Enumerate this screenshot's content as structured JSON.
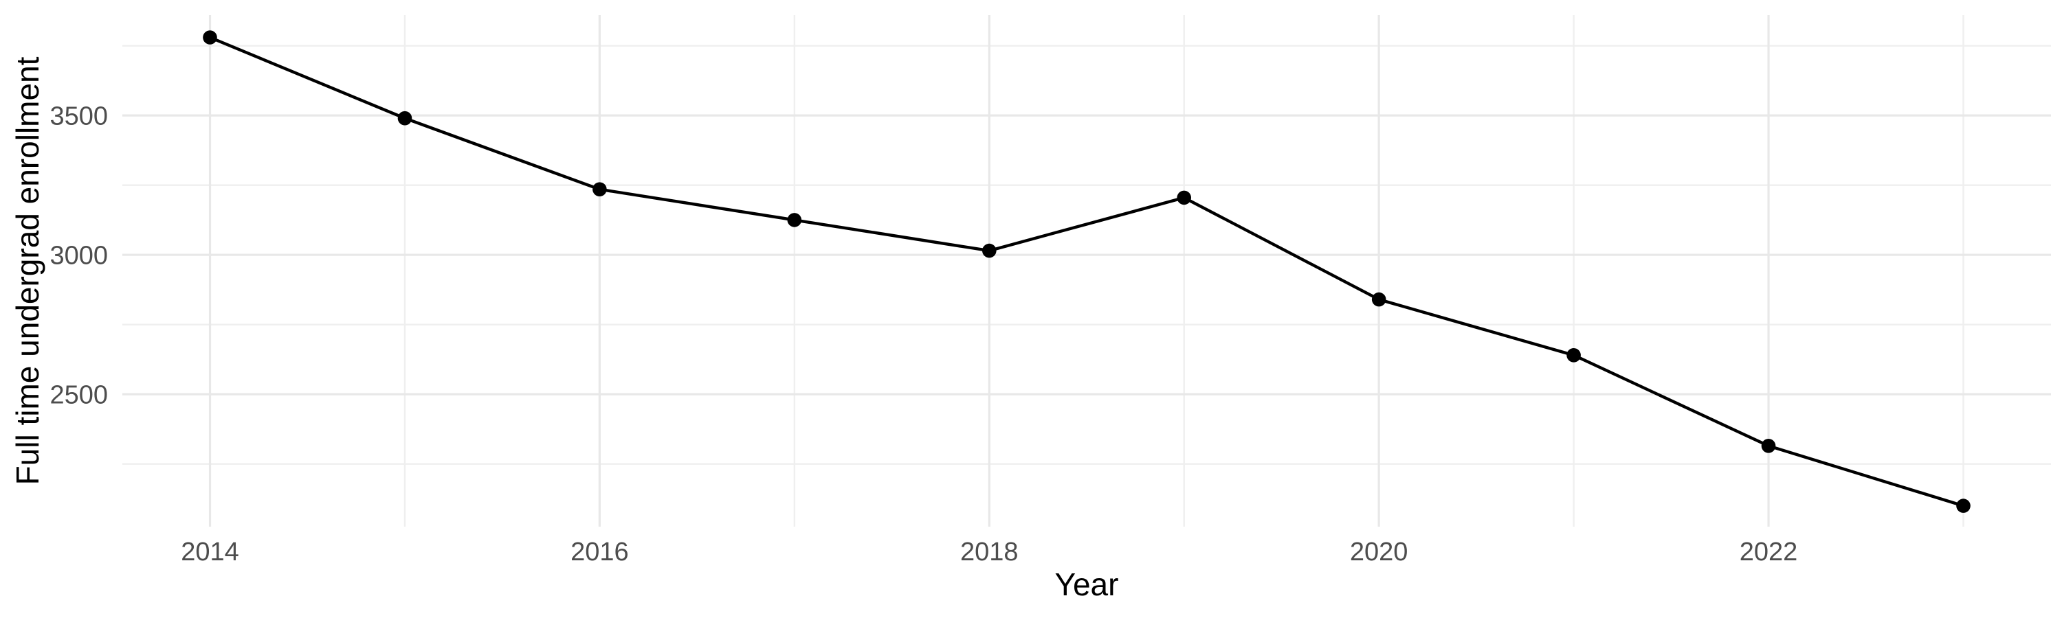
{
  "page": {
    "background": "#FFFFFF"
  },
  "chart_data": {
    "type": "line",
    "title": "",
    "xlabel": "Year",
    "ylabel": "Full time undergrad enrollment",
    "x": [
      2014,
      2015,
      2016,
      2017,
      2018,
      2019,
      2020,
      2021,
      2022,
      2023
    ],
    "series": [
      {
        "name": "Full time undergrad enrollment",
        "values": [
          3780,
          3490,
          3235,
          3125,
          3015,
          3205,
          2840,
          2640,
          2315,
          2100
        ]
      }
    ],
    "xlim": [
      2013.55,
      2023.45
    ],
    "ylim": [
      2025,
      3860
    ],
    "x_major_ticks": [
      2014,
      2016,
      2018,
      2020,
      2022
    ],
    "x_tick_labels": [
      "2014",
      "2016",
      "2018",
      "2020",
      "2022"
    ],
    "x_minor_ticks": [
      2015,
      2017,
      2019,
      2021,
      2023
    ],
    "y_major_ticks": [
      3500,
      3000,
      2500
    ],
    "y_tick_labels": [
      "3500",
      "3000",
      "2500"
    ],
    "y_minor_ticks": [
      3750,
      3250,
      2750,
      2250
    ],
    "grid": "major-and-minor",
    "legend": "none",
    "point_marker": "filled-circle",
    "colors": {
      "line": "#000000",
      "point": "#000000",
      "grid_major": "#E8E8E8",
      "grid_minor": "#EFEFEF",
      "tick_label": "#4D4D4D",
      "axis_title": "#000000",
      "panel_background": "#FFFFFF"
    }
  }
}
